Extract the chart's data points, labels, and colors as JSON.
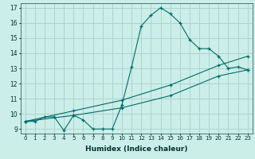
{
  "xlabel": "Humidex (Indice chaleur)",
  "background_color": "#cceee8",
  "grid_color": "#aad4ce",
  "line_color": "#006b6b",
  "xlim": [
    -0.5,
    23.5
  ],
  "ylim": [
    8.7,
    17.3
  ],
  "yticks": [
    9,
    10,
    11,
    12,
    13,
    14,
    15,
    16,
    17
  ],
  "xticks": [
    0,
    1,
    2,
    3,
    4,
    5,
    6,
    7,
    8,
    9,
    10,
    11,
    12,
    13,
    14,
    15,
    16,
    17,
    18,
    19,
    20,
    21,
    22,
    23
  ],
  "line1_x": [
    0,
    1,
    2,
    3,
    4,
    5,
    6,
    7,
    8,
    9,
    10,
    11,
    12,
    13,
    14,
    15,
    16,
    17,
    18,
    19,
    20,
    21,
    22,
    23
  ],
  "line1_y": [
    9.5,
    9.5,
    9.8,
    9.8,
    8.9,
    9.9,
    9.6,
    9.0,
    9.0,
    9.0,
    10.6,
    13.1,
    15.8,
    16.5,
    17.0,
    16.6,
    16.0,
    14.9,
    14.3,
    14.3,
    13.8,
    13.0,
    13.1,
    12.9
  ],
  "line2_x": [
    0,
    5,
    10,
    15,
    20,
    23
  ],
  "line2_y": [
    9.5,
    10.2,
    10.9,
    11.9,
    13.2,
    13.8
  ],
  "line3_x": [
    0,
    5,
    10,
    15,
    20,
    23
  ],
  "line3_y": [
    9.5,
    9.9,
    10.4,
    11.2,
    12.5,
    12.9
  ]
}
